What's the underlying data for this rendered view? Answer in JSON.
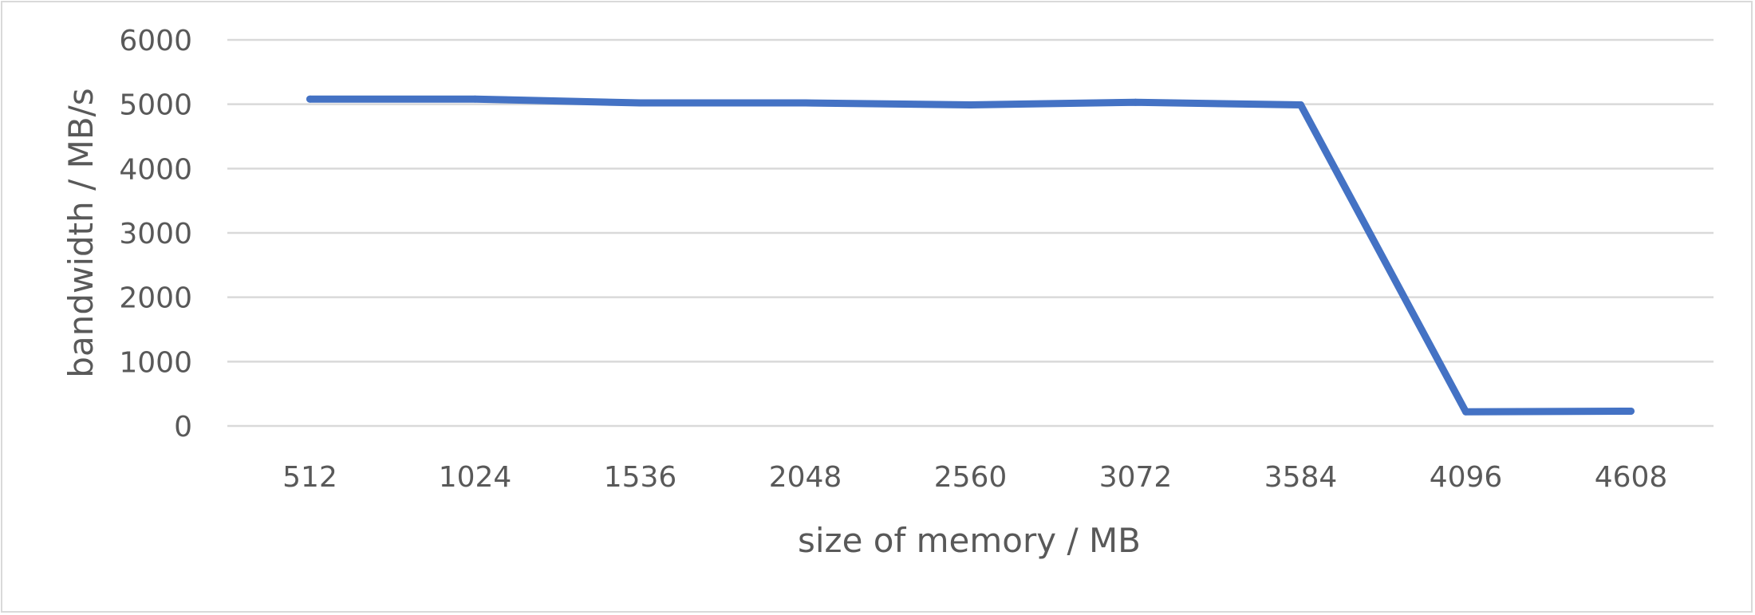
{
  "chart_data": {
    "type": "line",
    "title": "",
    "xlabel": "size of memory / MB",
    "ylabel": "bandwidth / MB/s",
    "categories": [
      "512",
      "1024",
      "1536",
      "2048",
      "2560",
      "3072",
      "3584",
      "4096",
      "4608"
    ],
    "series": [
      {
        "values": [
          5080,
          5080,
          5020,
          5020,
          4990,
          5030,
          4990,
          220,
          230
        ],
        "color": "#4472c4"
      }
    ],
    "ylim": [
      0,
      6000
    ],
    "yticks": [
      "0",
      "1000",
      "2000",
      "3000",
      "4000",
      "5000",
      "6000"
    ],
    "grid": true,
    "legend": "none"
  }
}
